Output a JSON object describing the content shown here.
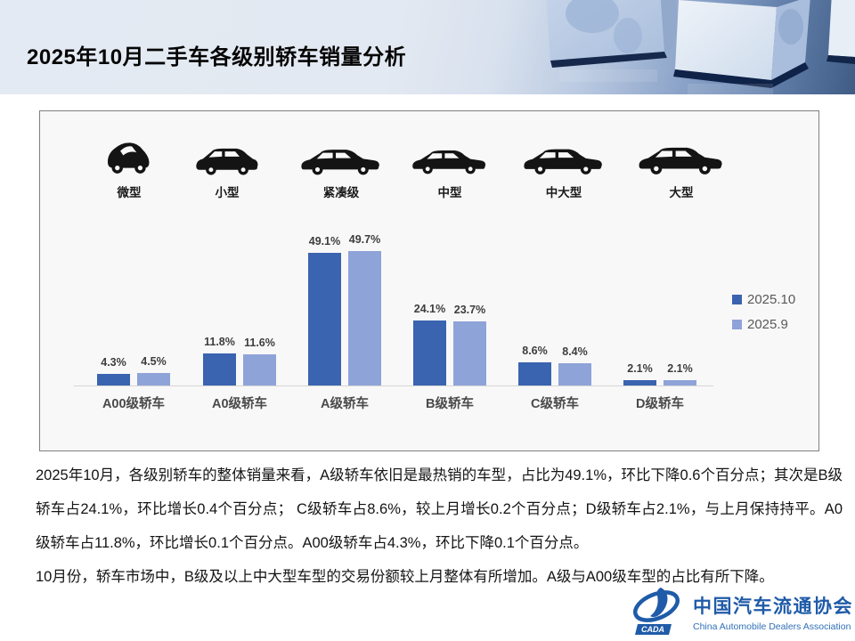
{
  "header": {
    "title": "2025年10月二手车各级别轿车销量分析"
  },
  "vehicle_classes": [
    "微型",
    "小型",
    "紧凑级",
    "中型",
    "中大型",
    "大型"
  ],
  "chart_data": {
    "type": "bar",
    "title": "",
    "categories": [
      "A00级轿车",
      "A0级轿车",
      "A级轿车",
      "B级轿车",
      "C级轿车",
      "D级轿车"
    ],
    "series": [
      {
        "name": "2025.10",
        "color": "#3a63b0",
        "values": [
          4.3,
          11.8,
          49.1,
          24.1,
          8.6,
          2.1
        ]
      },
      {
        "name": "2025.9",
        "color": "#8ea3d8",
        "values": [
          4.5,
          11.6,
          49.7,
          23.7,
          8.4,
          2.1
        ]
      }
    ],
    "value_format": "percent",
    "ylim": [
      0,
      55
    ],
    "grid": false,
    "legend_position": "right"
  },
  "body": {
    "paragraph1": "2025年10月，各级别轿车的整体销量来看，A级轿车依旧是最热销的车型，占比为49.1%，环比下降0.6个百分点；其次是B级轿车占24.1%，环比增长0.4个百分点； C级轿车占8.6%，较上月增长0.2个百分点；D级轿车占2.1%，与上月保持持平。A0级轿车占11.8%，环比增长0.1个百分点。A00级轿车占4.3%，环比下降0.1个百分点。",
    "paragraph2": "10月份，轿车市场中，B级及以上中大型车型的交易份额较上月整体有所增加。A级与A00级车型的占比有所下降。"
  },
  "footer_logo": {
    "name_cn": "中国汽车流通协会",
    "name_en": "China Automobile Dealers Association",
    "badge": "CADA",
    "brand_color": "#1f5ba8"
  }
}
